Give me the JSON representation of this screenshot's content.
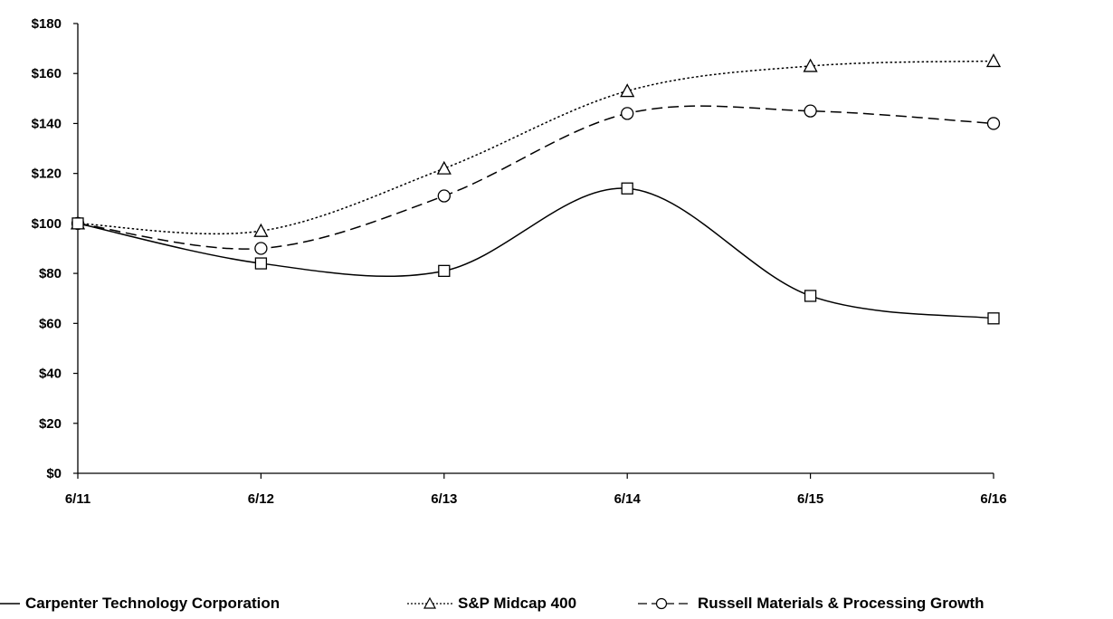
{
  "chart_data": {
    "type": "line",
    "categories": [
      "6/11",
      "6/12",
      "6/13",
      "6/14",
      "6/15",
      "6/16"
    ],
    "ylim": [
      0,
      180
    ],
    "yticks": [
      "$0",
      "$20",
      "$40",
      "$60",
      "$80",
      "$100",
      "$120",
      "$140",
      "$160",
      "$180"
    ],
    "ytick_values": [
      0,
      20,
      40,
      60,
      80,
      100,
      120,
      140,
      160,
      180
    ],
    "series": [
      {
        "name": "Carpenter Technology Corporation",
        "values": [
          100,
          84,
          81,
          114,
          71,
          62
        ],
        "marker": "square",
        "dash": "solid"
      },
      {
        "name": "S&P Midcap 400",
        "values": [
          100,
          97,
          122,
          153,
          163,
          165
        ],
        "marker": "triangle",
        "dash": "dotted"
      },
      {
        "name": "Russell Materials & Processing Growth",
        "values": [
          100,
          90,
          111,
          144,
          145,
          140
        ],
        "marker": "circle",
        "dash": "dashed"
      }
    ],
    "grid": false,
    "legend_position": "bottom"
  }
}
